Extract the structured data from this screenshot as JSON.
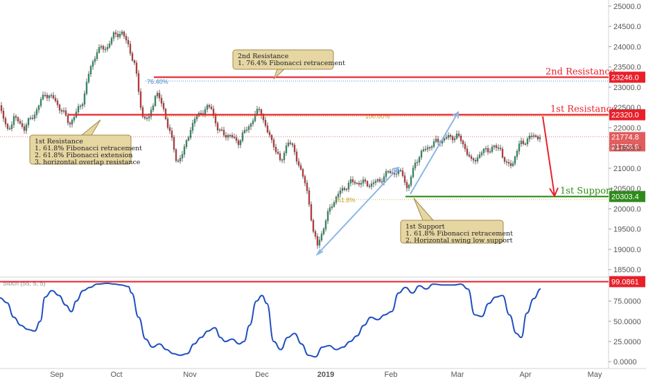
{
  "chart_data": {
    "type": "candlestick",
    "price_axis": {
      "range": [
        18350,
        25150
      ],
      "ticks": [
        "25000.0",
        "24500.0",
        "24000.0",
        "23500.0",
        "23000.0",
        "22500.0",
        "22000.0",
        "21500.0",
        "21000.0",
        "20500.0",
        "20000.0",
        "19500.0",
        "19000.0",
        "18500.0"
      ]
    },
    "x_axis": {
      "labels": [
        "Sep",
        "Oct",
        "Nov",
        "Dec",
        "2019",
        "Feb",
        "Mar",
        "Apr",
        "May"
      ]
    },
    "price_path": [
      [
        0,
        22550
      ],
      [
        10,
        21900
      ],
      [
        20,
        22250
      ],
      [
        35,
        22000
      ],
      [
        50,
        22350
      ],
      [
        65,
        22850
      ],
      [
        78,
        22700
      ],
      [
        90,
        22400
      ],
      [
        100,
        22100
      ],
      [
        110,
        22350
      ],
      [
        120,
        22700
      ],
      [
        130,
        23450
      ],
      [
        140,
        23900
      ],
      [
        155,
        24000
      ],
      [
        165,
        24300
      ],
      [
        175,
        24350
      ],
      [
        185,
        24050
      ],
      [
        195,
        23500
      ],
      [
        205,
        22300
      ],
      [
        215,
        22200
      ],
      [
        225,
        22900
      ],
      [
        235,
        22500
      ],
      [
        245,
        21900
      ],
      [
        255,
        21150
      ],
      [
        265,
        21400
      ],
      [
        275,
        22000
      ],
      [
        285,
        22300
      ],
      [
        295,
        22450
      ],
      [
        305,
        22500
      ],
      [
        315,
        21900
      ],
      [
        325,
        21850
      ],
      [
        335,
        21750
      ],
      [
        345,
        21650
      ],
      [
        355,
        21950
      ],
      [
        365,
        22200
      ],
      [
        375,
        22500
      ],
      [
        385,
        21900
      ],
      [
        395,
        21600
      ],
      [
        405,
        21100
      ],
      [
        415,
        21700
      ],
      [
        425,
        21400
      ],
      [
        435,
        20900
      ],
      [
        445,
        20300
      ],
      [
        452,
        19400
      ],
      [
        458,
        19100
      ],
      [
        466,
        19500
      ],
      [
        478,
        20100
      ],
      [
        490,
        20400
      ],
      [
        505,
        20650
      ],
      [
        520,
        20650
      ],
      [
        535,
        20600
      ],
      [
        548,
        20700
      ],
      [
        560,
        20900
      ],
      [
        572,
        20900
      ],
      [
        582,
        20850
      ],
      [
        588,
        20450
      ],
      [
        600,
        21200
      ],
      [
        615,
        21500
      ],
      [
        630,
        21650
      ],
      [
        645,
        21750
      ],
      [
        660,
        21800
      ],
      [
        670,
        21550
      ],
      [
        680,
        21150
      ],
      [
        690,
        21300
      ],
      [
        700,
        21450
      ],
      [
        712,
        21500
      ],
      [
        722,
        21500
      ],
      [
        730,
        21050
      ],
      [
        740,
        21150
      ],
      [
        750,
        21600
      ],
      [
        760,
        21700
      ],
      [
        770,
        21800
      ],
      [
        780,
        21775
      ]
    ],
    "levels": [
      {
        "name": "2nd Resistance",
        "value": "23246.0",
        "color": "#e8202a"
      },
      {
        "name": "1st Resistance",
        "value": "22320.0",
        "color": "#e8202a"
      },
      {
        "name": "1st Support",
        "value": "20303.4",
        "color": "#2e8b1a"
      }
    ],
    "last_price_tags": [
      "21774.8",
      "21758.9"
    ],
    "fib_labels": {
      "fib_764": "76.40%",
      "fib_100": "100.00%",
      "fib_618": "61.8%"
    },
    "annotations": {
      "res2": [
        "2nd Resistance",
        "1. 76.4% Fibonacci retracement"
      ],
      "res1": [
        "1st Resistance",
        "1. 61.8% Fibonacci retracement",
        "2. 61.8% Fibonacci extension",
        "3. horizontal overlap resistance"
      ],
      "sup1": [
        "1st Support",
        "1. 61.8% Fibonacci retracement",
        "2. Horizontal swing low support"
      ]
    },
    "oscillator": {
      "label": "Stoch (55, 5, 5)",
      "range": [
        -5,
        103
      ],
      "ticks": [
        "75.0000",
        "50.0000",
        "25.0000",
        "0.0000"
      ],
      "level_tag": "99.0861",
      "path": [
        [
          0,
          79
        ],
        [
          10,
          73
        ],
        [
          20,
          55
        ],
        [
          30,
          45
        ],
        [
          40,
          40
        ],
        [
          50,
          38
        ],
        [
          58,
          50
        ],
        [
          65,
          80
        ],
        [
          75,
          88
        ],
        [
          85,
          82
        ],
        [
          95,
          70
        ],
        [
          103,
          62
        ],
        [
          110,
          75
        ],
        [
          120,
          88
        ],
        [
          130,
          92
        ],
        [
          140,
          96
        ],
        [
          155,
          97
        ],
        [
          165,
          96
        ],
        [
          175,
          95
        ],
        [
          185,
          93
        ],
        [
          190,
          85
        ],
        [
          200,
          55
        ],
        [
          210,
          28
        ],
        [
          220,
          18
        ],
        [
          230,
          22
        ],
        [
          240,
          15
        ],
        [
          250,
          10
        ],
        [
          260,
          8
        ],
        [
          270,
          10
        ],
        [
          280,
          22
        ],
        [
          290,
          30
        ],
        [
          300,
          38
        ],
        [
          310,
          42
        ],
        [
          318,
          30
        ],
        [
          325,
          25
        ],
        [
          335,
          28
        ],
        [
          345,
          22
        ],
        [
          352,
          25
        ],
        [
          360,
          45
        ],
        [
          370,
          75
        ],
        [
          378,
          82
        ],
        [
          385,
          72
        ],
        [
          395,
          25
        ],
        [
          405,
          15
        ],
        [
          415,
          30
        ],
        [
          425,
          35
        ],
        [
          435,
          22
        ],
        [
          445,
          8
        ],
        [
          455,
          6
        ],
        [
          465,
          18
        ],
        [
          475,
          20
        ],
        [
          485,
          15
        ],
        [
          495,
          18
        ],
        [
          505,
          25
        ],
        [
          515,
          32
        ],
        [
          525,
          45
        ],
        [
          535,
          55
        ],
        [
          545,
          52
        ],
        [
          555,
          58
        ],
        [
          565,
          62
        ],
        [
          575,
          85
        ],
        [
          585,
          92
        ],
        [
          595,
          85
        ],
        [
          605,
          94
        ],
        [
          615,
          90
        ],
        [
          625,
          96
        ],
        [
          640,
          95
        ],
        [
          655,
          95
        ],
        [
          665,
          96
        ],
        [
          675,
          90
        ],
        [
          685,
          58
        ],
        [
          695,
          56
        ],
        [
          705,
          72
        ],
        [
          715,
          80
        ],
        [
          725,
          82
        ],
        [
          735,
          58
        ],
        [
          745,
          35
        ],
        [
          752,
          30
        ],
        [
          760,
          60
        ],
        [
          770,
          78
        ],
        [
          780,
          90
        ]
      ]
    }
  }
}
